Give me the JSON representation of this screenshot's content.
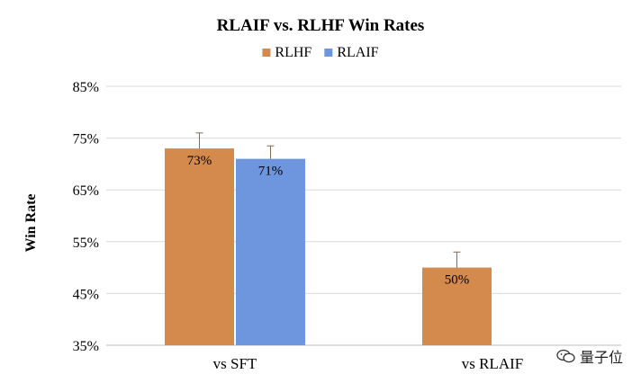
{
  "chart_data": {
    "type": "bar",
    "title": "RLAIF vs. RLHF Win Rates",
    "ylabel": "Win Rate",
    "xlabel": "",
    "ylim": [
      35,
      85
    ],
    "yticks": [
      35,
      45,
      55,
      65,
      75,
      85
    ],
    "ytick_labels": [
      "35%",
      "45%",
      "55%",
      "65%",
      "75%",
      "85%"
    ],
    "categories": [
      "vs SFT",
      "vs RLAIF"
    ],
    "legend_position": "top-center",
    "grid": true,
    "series": [
      {
        "name": "RLHF",
        "color": "#D48A4C",
        "values": [
          73,
          50
        ],
        "errors": [
          3,
          3
        ],
        "labels": [
          "73%",
          "50%"
        ]
      },
      {
        "name": "RLAIF",
        "color": "#6D96DE",
        "values": [
          71,
          null
        ],
        "errors": [
          2.5,
          null
        ],
        "labels": [
          "71%",
          null
        ]
      }
    ]
  },
  "watermark": {
    "text": "量子位"
  }
}
